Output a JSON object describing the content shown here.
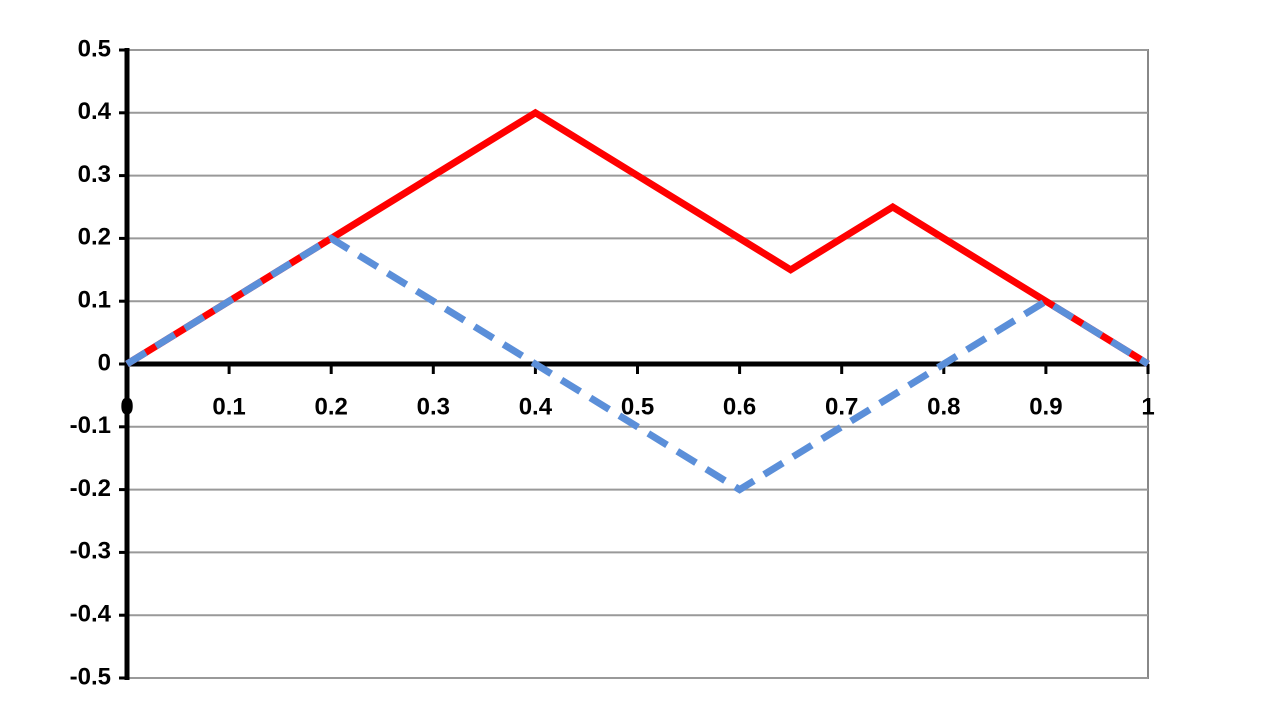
{
  "chart_data": {
    "type": "line",
    "series": [
      {
        "color": "#ff0000",
        "dash": false,
        "x": [
          0,
          0.4,
          0.65,
          0.75,
          1
        ],
        "values": [
          0,
          0.4,
          0.15,
          0.25,
          0
        ]
      },
      {
        "color": "#5b8fd9",
        "dash": true,
        "x": [
          0,
          0.2,
          0.6,
          0.9,
          1
        ],
        "values": [
          0,
          0.2,
          -0.2,
          0.1,
          0
        ]
      }
    ],
    "xlim": [
      0,
      1
    ],
    "xticks": [
      0,
      0.1,
      0.2,
      0.3,
      0.4,
      0.5,
      0.6,
      0.7,
      0.8,
      0.9,
      1
    ],
    "ylim": [
      -0.5,
      0.5
    ],
    "yticks": [
      -0.5,
      -0.4,
      -0.3,
      -0.2,
      -0.1,
      0,
      0.1,
      0.2,
      0.3,
      0.4,
      0.5
    ],
    "grid": true
  }
}
